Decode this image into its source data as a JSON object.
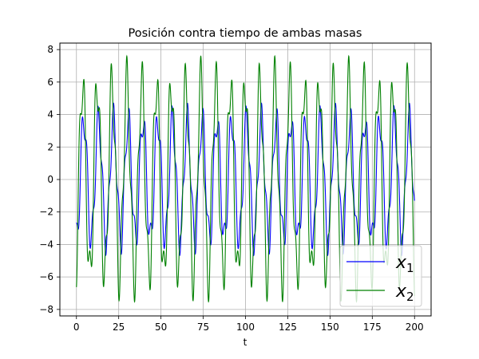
{
  "chart_data": {
    "type": "line",
    "title": "Posición contra tiempo de ambas masas",
    "xlabel": "t",
    "ylabel": "",
    "xlim": [
      -9.8,
      209.8
    ],
    "ylim": [
      -8.4,
      8.4
    ],
    "xticks": [
      0,
      25,
      50,
      75,
      100,
      125,
      150,
      175,
      200
    ],
    "yticks": [
      -8,
      -6,
      -4,
      -2,
      0,
      2,
      4,
      6,
      8
    ],
    "grid": true,
    "legend_position": "lower-right",
    "t_range": [
      0,
      200
    ],
    "series": [
      {
        "name": "x1",
        "name_main": "x",
        "name_sub": "1",
        "color": "#0000ff",
        "components": [
          {
            "amplitude": 3.7,
            "omega": 0.718,
            "phase": -1.57
          },
          {
            "amplitude": 1.0,
            "omega": 2.01,
            "phase": 1.4
          }
        ]
      },
      {
        "name": "x2",
        "name_main": "x",
        "name_sub": "2",
        "color": "#008000",
        "components": [
          {
            "amplitude": 6.0,
            "omega": 0.718,
            "phase": -1.0
          },
          {
            "amplitude": -1.6,
            "omega": 2.01,
            "phase": 1.4
          }
        ]
      }
    ]
  }
}
